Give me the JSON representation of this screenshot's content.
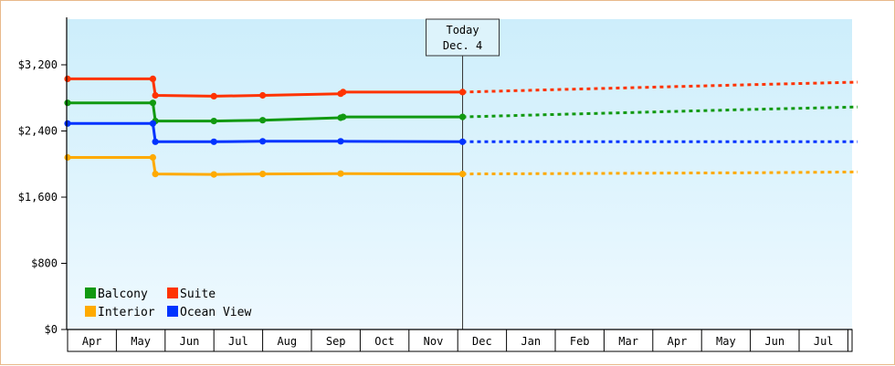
{
  "chart_data": {
    "type": "line",
    "title": "",
    "xlabel": "",
    "ylabel": "",
    "ylim": [
      0,
      3200
    ],
    "y_tick_values": [
      0,
      800,
      1600,
      2400,
      3200
    ],
    "y_tick_labels": [
      "$0",
      "$800",
      "$1,600",
      "$2,400",
      "$3,200"
    ],
    "x_months": [
      "Apr",
      "May",
      "Jun",
      "Jul",
      "Aug",
      "Sep",
      "Oct",
      "Nov",
      "Dec",
      "Jan",
      "Feb",
      "Mar",
      "Apr",
      "May",
      "Jun",
      "Jul"
    ],
    "x_range_months": [
      0,
      16.2
    ],
    "grid": false,
    "legend_position": "bottom-left",
    "today": {
      "line1": "Today",
      "line2": "Dec. 4",
      "x": 8.1
    },
    "series": [
      {
        "name": "Balcony",
        "color": "#119911",
        "actual": [
          [
            0,
            2740
          ],
          [
            1.75,
            2740
          ],
          [
            1.8,
            2520
          ],
          [
            3,
            2520
          ],
          [
            4,
            2530
          ],
          [
            5.6,
            2560
          ],
          [
            5.65,
            2570
          ],
          [
            8.1,
            2570
          ]
        ],
        "forecast": [
          [
            8.1,
            2570
          ],
          [
            10,
            2600
          ],
          [
            12,
            2630
          ],
          [
            14,
            2660
          ],
          [
            16.2,
            2690
          ]
        ]
      },
      {
        "name": "Suite",
        "color": "#ff3300",
        "actual": [
          [
            0,
            3030
          ],
          [
            1.75,
            3030
          ],
          [
            1.8,
            2830
          ],
          [
            3,
            2820
          ],
          [
            4,
            2830
          ],
          [
            5.6,
            2850
          ],
          [
            5.65,
            2870
          ],
          [
            8.1,
            2870
          ]
        ],
        "forecast": [
          [
            8.1,
            2870
          ],
          [
            10,
            2900
          ],
          [
            12,
            2930
          ],
          [
            14,
            2960
          ],
          [
            16.2,
            2990
          ]
        ]
      },
      {
        "name": "Interior",
        "color": "#ffaa00",
        "actual": [
          [
            0,
            2080
          ],
          [
            1.75,
            2080
          ],
          [
            1.8,
            1880
          ],
          [
            3,
            1875
          ],
          [
            4,
            1880
          ],
          [
            5.6,
            1885
          ],
          [
            8.1,
            1880
          ]
        ],
        "forecast": [
          [
            8.1,
            1880
          ],
          [
            10,
            1885
          ],
          [
            12,
            1890
          ],
          [
            14,
            1895
          ],
          [
            16.2,
            1905
          ]
        ]
      },
      {
        "name": "Ocean View",
        "color": "#0033ff",
        "actual": [
          [
            0,
            2490
          ],
          [
            1.75,
            2490
          ],
          [
            1.8,
            2270
          ],
          [
            3,
            2270
          ],
          [
            4,
            2275
          ],
          [
            5.6,
            2275
          ],
          [
            8.1,
            2270
          ]
        ],
        "forecast": [
          [
            8.1,
            2270
          ],
          [
            16.2,
            2270
          ]
        ]
      }
    ],
    "legend_order": [
      "Balcony",
      "Suite",
      "Interior",
      "Ocean View"
    ]
  }
}
